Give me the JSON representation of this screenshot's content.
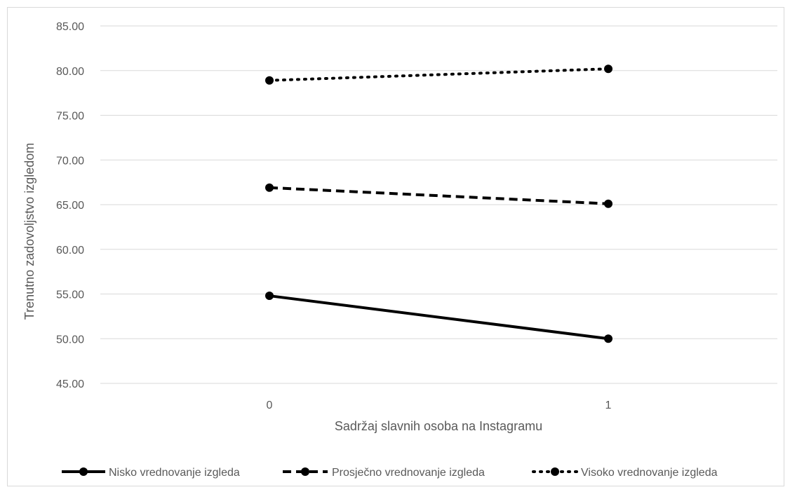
{
  "chart_data": {
    "type": "line",
    "title": "",
    "xlabel": "Sadržaj slavnih osoba na Instagramu",
    "ylabel": "Trenutno zadovoljstvo izgledom",
    "categories": [
      "0",
      "1"
    ],
    "ylim": [
      45,
      85
    ],
    "yticks": [
      "45.00",
      "50.00",
      "55.00",
      "60.00",
      "65.00",
      "70.00",
      "75.00",
      "80.00",
      "85.00"
    ],
    "grid": true,
    "legend_position": "bottom",
    "series": [
      {
        "name": "Nisko vrednovanje izgleda",
        "values": [
          54.8,
          50.0
        ],
        "style": "solid"
      },
      {
        "name": "Prosječno vrednovanje izgleda",
        "values": [
          66.9,
          65.1
        ],
        "style": "dashed"
      },
      {
        "name": "Visoko vrednovanje izgleda",
        "values": [
          78.9,
          80.2
        ],
        "style": "dotted"
      }
    ],
    "colors": {
      "line": "#000000",
      "grid": "#d9d9d9",
      "text": "#595959"
    }
  }
}
